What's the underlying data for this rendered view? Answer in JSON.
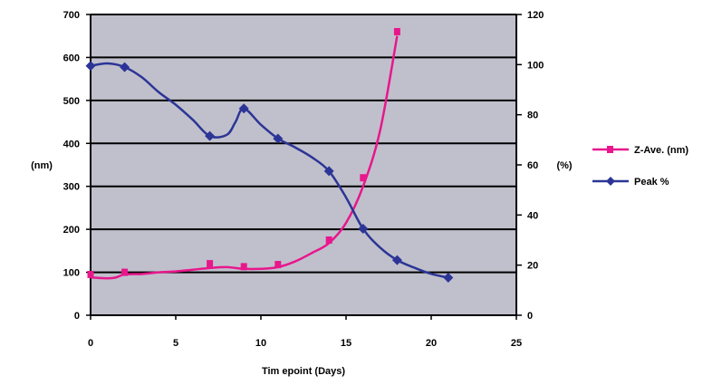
{
  "chart_data": {
    "type": "line",
    "xlabel": "Tim epoint (Days)",
    "ylabel_left": "(nm)",
    "ylabel_right": "(%)",
    "xlim": [
      0,
      25
    ],
    "ylim_left": [
      0,
      700
    ],
    "ylim_right": [
      0,
      120
    ],
    "x_ticks": [
      "0",
      "5",
      "10",
      "15",
      "20",
      "25"
    ],
    "y_ticks_left": [
      "0",
      "100",
      "200",
      "300",
      "400",
      "500",
      "600",
      "700"
    ],
    "y_ticks_right": [
      "0",
      "20",
      "40",
      "60",
      "80",
      "100",
      "120"
    ],
    "grid": true,
    "legend_position": "right",
    "plot_background": "#c0c0cc",
    "series": [
      {
        "name": "Z-Ave. (nm)",
        "axis": "left",
        "color": "#e8178c",
        "marker": "square",
        "points": [
          [
            0,
            95
          ],
          [
            2,
            100
          ],
          [
            7,
            120
          ],
          [
            9,
            113
          ],
          [
            11,
            118
          ],
          [
            14,
            175
          ],
          [
            16,
            320
          ],
          [
            18,
            660
          ]
        ],
        "curve": [
          [
            0,
            88
          ],
          [
            1,
            86
          ],
          [
            1.5,
            88
          ],
          [
            2,
            95
          ],
          [
            3,
            96
          ],
          [
            4,
            100
          ],
          [
            5,
            102
          ],
          [
            6,
            106
          ],
          [
            7,
            110
          ],
          [
            8,
            112
          ],
          [
            9,
            108
          ],
          [
            10,
            108
          ],
          [
            11,
            112
          ],
          [
            12,
            125
          ],
          [
            13,
            145
          ],
          [
            14,
            168
          ],
          [
            15,
            215
          ],
          [
            16,
            300
          ],
          [
            17,
            430
          ],
          [
            18,
            650
          ]
        ]
      },
      {
        "name": "Peak %",
        "axis": "right",
        "color": "#2c3596",
        "marker": "diamond",
        "points": [
          [
            0,
            99.5
          ],
          [
            2,
            99
          ],
          [
            7,
            71.5
          ],
          [
            9,
            82.5
          ],
          [
            11,
            70.5
          ],
          [
            14,
            57.5
          ],
          [
            16,
            34.5
          ],
          [
            18,
            22
          ],
          [
            21,
            15
          ]
        ],
        "curve": [
          [
            0,
            99.5
          ],
          [
            1,
            100.5
          ],
          [
            2,
            99
          ],
          [
            3,
            95
          ],
          [
            4,
            89
          ],
          [
            5,
            84
          ],
          [
            6,
            78
          ],
          [
            7,
            71.5
          ],
          [
            8,
            72
          ],
          [
            8.5,
            77
          ],
          [
            9,
            82.5
          ],
          [
            10,
            76
          ],
          [
            11,
            70.5
          ],
          [
            12,
            67
          ],
          [
            13,
            63
          ],
          [
            14,
            57.5
          ],
          [
            15,
            47
          ],
          [
            16,
            34.5
          ],
          [
            17,
            27
          ],
          [
            18,
            22
          ],
          [
            19,
            19
          ],
          [
            20,
            16.5
          ],
          [
            21,
            15
          ]
        ]
      }
    ]
  }
}
